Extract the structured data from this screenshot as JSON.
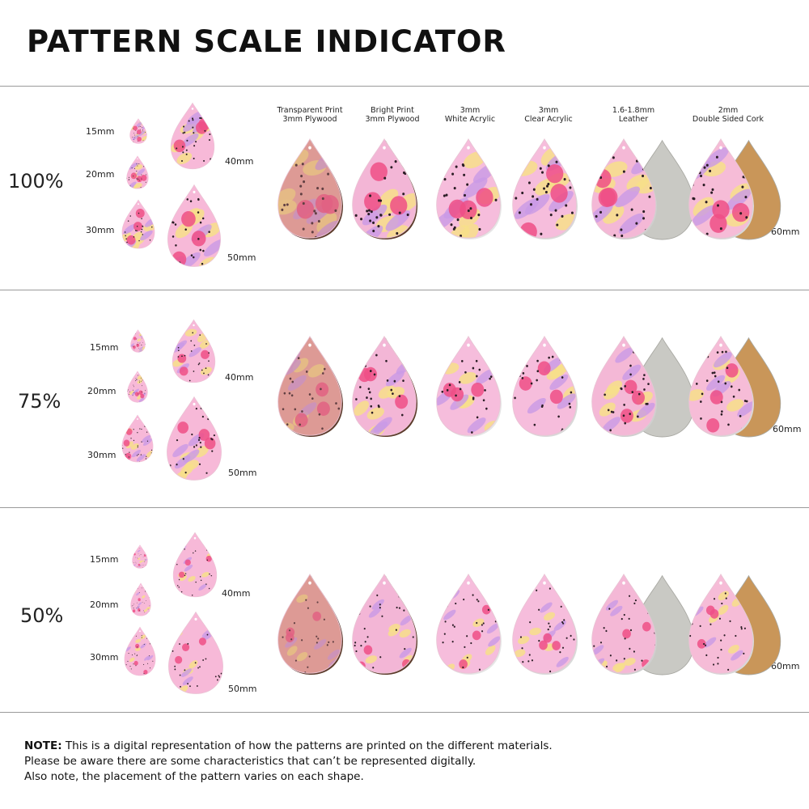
{
  "title": "PATTERN SCALE INDICATOR",
  "materials": [
    {
      "line1": "Transparent Print",
      "line2": "3mm Plywood",
      "fill": "#e9a7a4",
      "edge": "#5b3a2a",
      "back": ""
    },
    {
      "line1": "Bright Print",
      "line2": "3mm Plywood",
      "fill": "#f3b6d6",
      "edge": "#5b3a2a",
      "back": ""
    },
    {
      "line1": "3mm",
      "line2": "White Acrylic",
      "fill": "#f6bddc",
      "edge": "#e6e6e6",
      "back": ""
    },
    {
      "line1": "3mm",
      "line2": "Clear Acrylic",
      "fill": "#f6bddc",
      "edge": "#d9d9d9",
      "back": ""
    },
    {
      "line1": "1.6-1.8mm",
      "line2": "Leather",
      "fill": "#f4b8d6",
      "edge": "#cfcfcf",
      "back": "#c9c9c4"
    },
    {
      "line1": "2mm",
      "line2": "Double Sided Cork",
      "fill": "#f6bcd7",
      "edge": "#d8d8d8",
      "back": "#c99659"
    }
  ],
  "sizes": [
    "15mm",
    "20mm",
    "30mm",
    "40mm",
    "50mm"
  ],
  "material_size": "60mm",
  "scales": [
    "100%",
    "75%",
    "50%"
  ],
  "note": {
    "bold": "NOTE:",
    "line1": " This is a digital representation of how the patterns are printed on the different materials.",
    "line2": "Please be aware there are some characteristics that can’t be represented digitally.",
    "line3": "Also note, the placement of the pattern varies on each shape."
  },
  "colors": {
    "pink": "#f7b9d8",
    "magenta": "#ee4f86",
    "yellow": "#f7df8a",
    "lavender": "#c99ae6",
    "dots": "#2b1d25"
  }
}
